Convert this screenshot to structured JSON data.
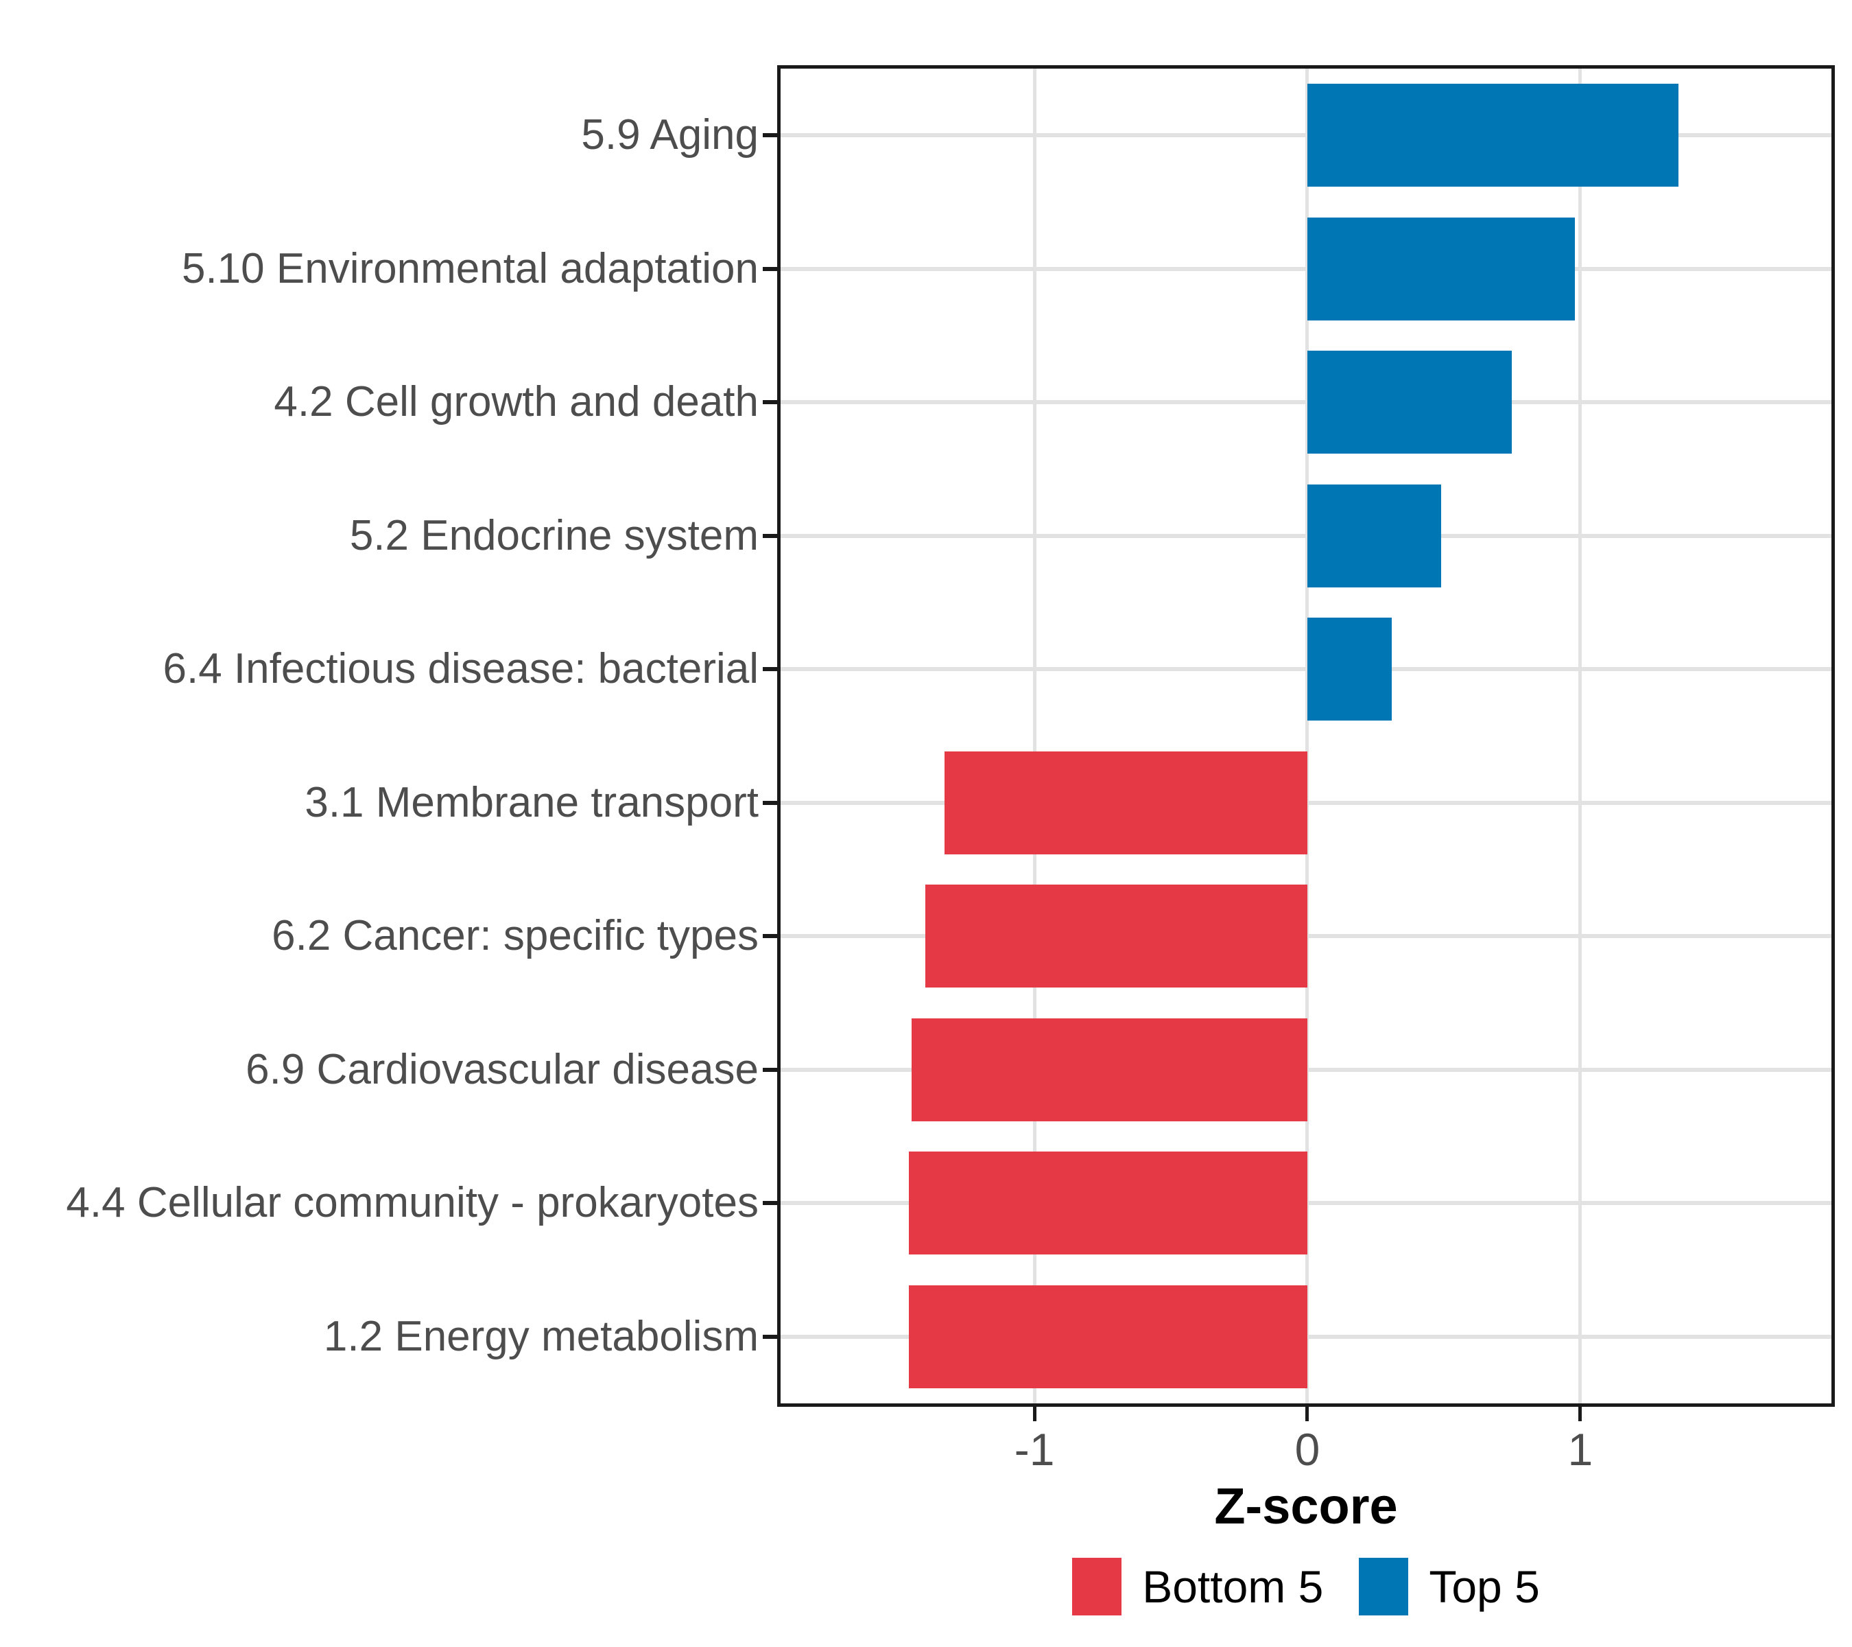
{
  "chart_data": {
    "type": "bar",
    "orientation": "horizontal",
    "title": "",
    "xlabel": "Z-score",
    "ylabel": "",
    "xlim": [
      -1.93,
      1.92
    ],
    "x_ticks": [
      {
        "label": "-1",
        "value": -1
      },
      {
        "label": "0",
        "value": 0
      },
      {
        "label": "1",
        "value": 1
      }
    ],
    "grid": true,
    "legend_position": "bottom",
    "categories": [
      "5.9 Aging",
      "5.10 Environmental adaptation",
      "4.2 Cell growth and death",
      "5.2 Endocrine system",
      "6.4 Infectious disease: bacterial",
      "3.1 Membrane transport",
      "6.2 Cancer: specific types",
      "6.9 Cardiovascular disease",
      "4.4 Cellular community - prokaryotes",
      "1.2 Energy metabolism"
    ],
    "values": [
      1.36,
      0.98,
      0.75,
      0.49,
      0.31,
      -1.33,
      -1.4,
      -1.45,
      -1.46,
      -1.46
    ],
    "groups": [
      "Top 5",
      "Top 5",
      "Top 5",
      "Top 5",
      "Top 5",
      "Bottom 5",
      "Bottom 5",
      "Bottom 5",
      "Bottom 5",
      "Bottom 5"
    ],
    "series_colors": {
      "Top 5": "#0076B5",
      "Bottom 5": "#E63946"
    },
    "legend": [
      {
        "label": "Bottom 5",
        "color": "#E63946"
      },
      {
        "label": "Top 5",
        "color": "#0076B5"
      }
    ],
    "axis_text_color": "#4D4D4D",
    "grid_color": "#E2E2E2",
    "panel_border_color": "#1a1a1a"
  }
}
